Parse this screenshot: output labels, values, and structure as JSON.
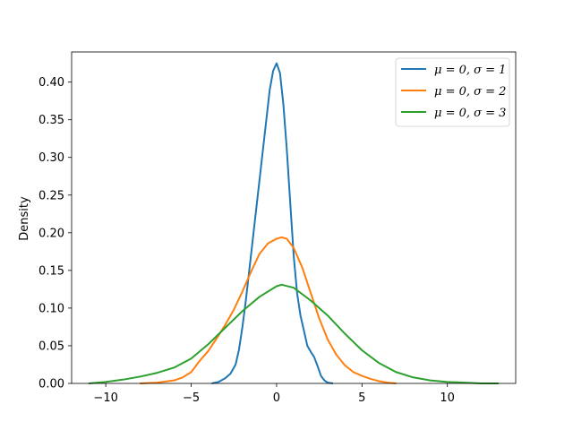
{
  "chart_data": {
    "type": "line",
    "title": "",
    "xlabel": "",
    "ylabel": "Density",
    "xlim": [
      -12,
      14
    ],
    "ylim": [
      0,
      0.44
    ],
    "xticks": [
      -10,
      -5,
      0,
      5,
      10
    ],
    "yticks": [
      0.0,
      0.05,
      0.1,
      0.15,
      0.2,
      0.25,
      0.3,
      0.35,
      0.4
    ],
    "ytick_labels": [
      "0.00",
      "0.05",
      "0.10",
      "0.15",
      "0.20",
      "0.25",
      "0.30",
      "0.35",
      "0.40"
    ],
    "xtick_labels": [
      "−10",
      "−5",
      "0",
      "5",
      "10"
    ],
    "grid": false,
    "legend_position": "top-right",
    "series": [
      {
        "name": "μ = 0, σ = 1",
        "color": "#1f77b4",
        "x": [
          -3.8,
          -3.4,
          -3.0,
          -2.7,
          -2.4,
          -2.2,
          -2.0,
          -1.8,
          -1.6,
          -1.4,
          -1.2,
          -1.0,
          -0.8,
          -0.6,
          -0.4,
          -0.2,
          0.0,
          0.2,
          0.4,
          0.6,
          0.8,
          1.0,
          1.2,
          1.4,
          1.6,
          1.8,
          2.0,
          2.2,
          2.4,
          2.6,
          2.8,
          3.0,
          3.3
        ],
        "y": [
          0.0,
          0.002,
          0.007,
          0.013,
          0.025,
          0.045,
          0.075,
          0.11,
          0.15,
          0.19,
          0.23,
          0.27,
          0.31,
          0.35,
          0.39,
          0.415,
          0.425,
          0.412,
          0.37,
          0.31,
          0.24,
          0.17,
          0.12,
          0.09,
          0.07,
          0.05,
          0.042,
          0.035,
          0.023,
          0.01,
          0.004,
          0.001,
          0.0
        ]
      },
      {
        "name": "μ = 0, σ = 2",
        "color": "#ff7f0e",
        "x": [
          -8.0,
          -7.0,
          -6.0,
          -5.5,
          -5.0,
          -4.5,
          -4.0,
          -3.5,
          -3.0,
          -2.5,
          -2.0,
          -1.5,
          -1.0,
          -0.5,
          0.0,
          0.3,
          0.6,
          1.0,
          1.5,
          2.0,
          2.5,
          3.0,
          3.5,
          4.0,
          4.5,
          5.0,
          5.5,
          6.0,
          6.5,
          7.0
        ],
        "y": [
          0.0,
          0.001,
          0.004,
          0.008,
          0.015,
          0.03,
          0.043,
          0.06,
          0.078,
          0.098,
          0.122,
          0.148,
          0.172,
          0.186,
          0.192,
          0.194,
          0.192,
          0.18,
          0.154,
          0.12,
          0.086,
          0.058,
          0.038,
          0.024,
          0.015,
          0.01,
          0.006,
          0.003,
          0.001,
          0.0
        ]
      },
      {
        "name": "μ = 0, σ = 3",
        "color": "#2ca02c",
        "x": [
          -11.0,
          -10.0,
          -9.0,
          -8.0,
          -7.0,
          -6.0,
          -5.0,
          -4.0,
          -3.0,
          -2.0,
          -1.0,
          0.0,
          0.3,
          1.0,
          2.0,
          3.0,
          4.0,
          5.0,
          6.0,
          7.0,
          8.0,
          9.0,
          10.0,
          11.0,
          12.0,
          13.0
        ],
        "y": [
          0.0,
          0.002,
          0.005,
          0.009,
          0.014,
          0.021,
          0.033,
          0.052,
          0.074,
          0.096,
          0.115,
          0.129,
          0.131,
          0.127,
          0.11,
          0.09,
          0.066,
          0.044,
          0.027,
          0.015,
          0.008,
          0.004,
          0.002,
          0.001,
          0.0,
          0.0
        ]
      }
    ]
  }
}
